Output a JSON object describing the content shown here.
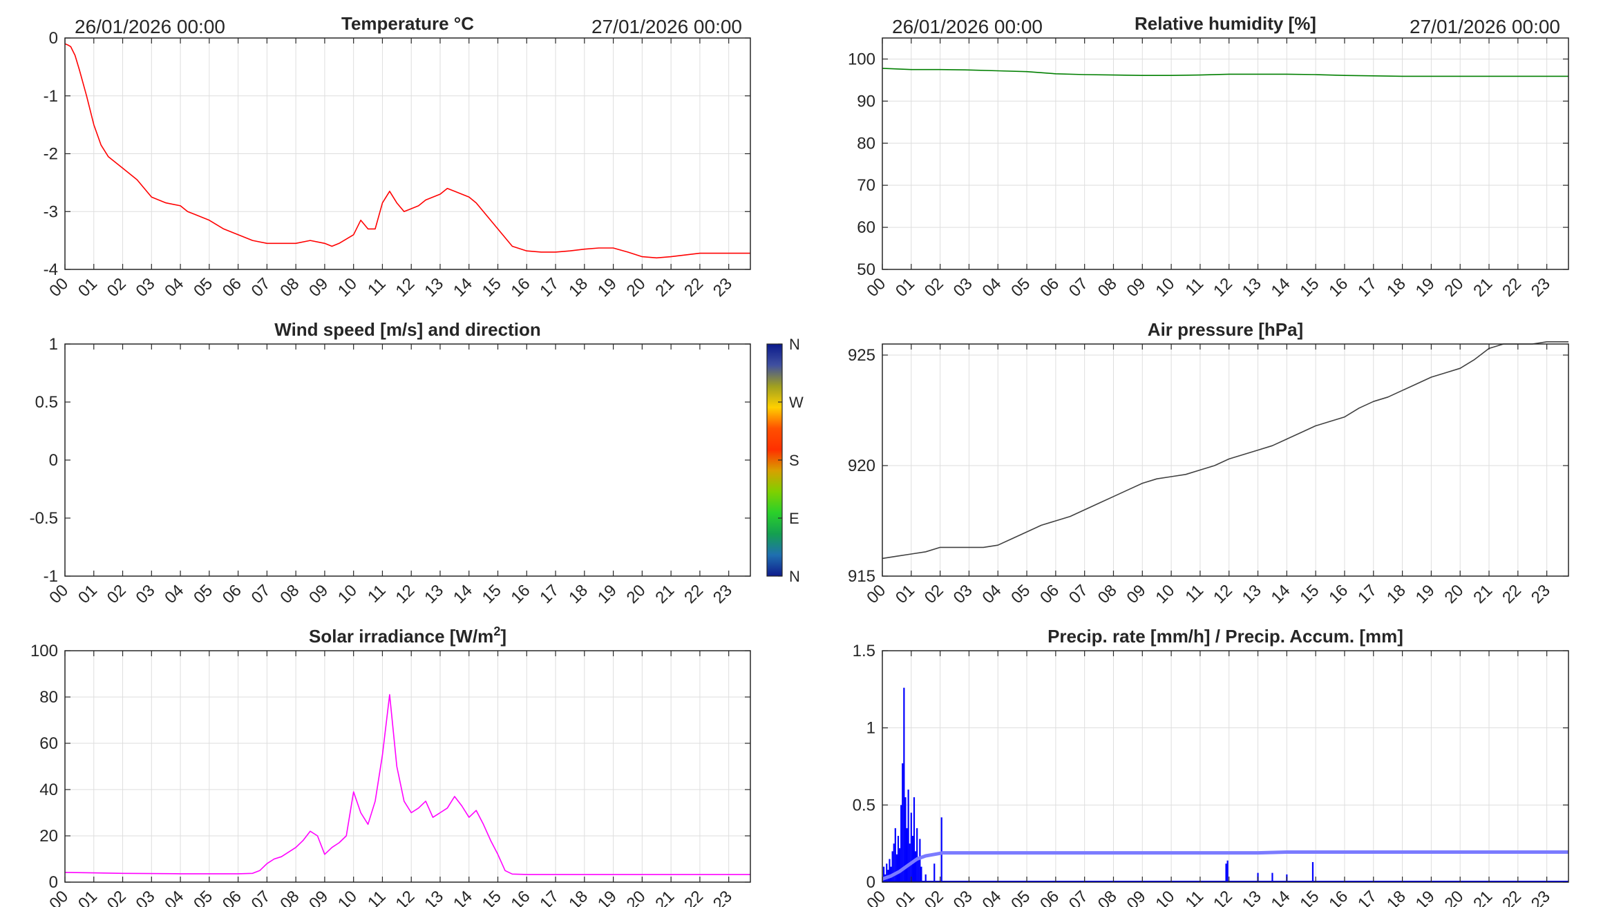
{
  "chart_data": [
    {
      "id": "temp",
      "type": "line",
      "title": "Temperature °C",
      "date_left": "26/01/2026 00:00",
      "date_right": "27/01/2026 00:00",
      "x_tick_labels": [
        "00",
        "01",
        "02",
        "03",
        "04",
        "05",
        "06",
        "07",
        "08",
        "09",
        "10",
        "11",
        "12",
        "13",
        "14",
        "15",
        "16",
        "17",
        "18",
        "19",
        "20",
        "21",
        "22",
        "23"
      ],
      "xlim": [
        0,
        23.75
      ],
      "ylim": [
        -4,
        0
      ],
      "y_ticks": [
        0,
        -1,
        -2,
        -3,
        -4
      ],
      "y_tick_labels": [
        "0",
        "-1",
        "-2",
        "-3",
        "-4"
      ],
      "grid": true,
      "color": "#ff0000",
      "series": [
        {
          "x": [
            0,
            0.1,
            0.2,
            0.35,
            0.5,
            0.75,
            1.0,
            1.25,
            1.5,
            2.0,
            2.5,
            3.0,
            3.25,
            3.5,
            4.0,
            4.25,
            4.5,
            5.0,
            5.5,
            6.0,
            6.5,
            7.0,
            7.5,
            8.0,
            8.5,
            9.0,
            9.25,
            9.5,
            10.0,
            10.25,
            10.5,
            10.75,
            11.0,
            11.25,
            11.5,
            11.75,
            12.0,
            12.25,
            12.5,
            13.0,
            13.25,
            13.5,
            14.0,
            14.25,
            14.5,
            15.0,
            15.5,
            16.0,
            16.5,
            17.0,
            17.5,
            18.0,
            18.5,
            19.0,
            19.5,
            20.0,
            20.5,
            21.0,
            21.5,
            22.0,
            22.5,
            23.0,
            23.75
          ],
          "y": [
            -0.1,
            -0.12,
            -0.15,
            -0.3,
            -0.55,
            -1.0,
            -1.5,
            -1.85,
            -2.05,
            -2.25,
            -2.45,
            -2.75,
            -2.8,
            -2.85,
            -2.9,
            -3.0,
            -3.05,
            -3.15,
            -3.3,
            -3.4,
            -3.5,
            -3.55,
            -3.55,
            -3.55,
            -3.5,
            -3.55,
            -3.6,
            -3.55,
            -3.4,
            -3.15,
            -3.3,
            -3.3,
            -2.85,
            -2.65,
            -2.85,
            -3.0,
            -2.95,
            -2.9,
            -2.8,
            -2.7,
            -2.6,
            -2.65,
            -2.75,
            -2.85,
            -3.0,
            -3.3,
            -3.6,
            -3.68,
            -3.7,
            -3.7,
            -3.68,
            -3.65,
            -3.63,
            -3.63,
            -3.7,
            -3.78,
            -3.8,
            -3.78,
            -3.75,
            -3.72,
            -3.72,
            -3.72,
            -3.72
          ]
        }
      ]
    },
    {
      "id": "humidity",
      "type": "line",
      "title": "Relative humidity [%]",
      "date_left": "26/01/2026 00:00",
      "date_right": "27/01/2026 00:00",
      "x_tick_labels": [
        "00",
        "01",
        "02",
        "03",
        "04",
        "05",
        "06",
        "07",
        "08",
        "09",
        "10",
        "11",
        "12",
        "13",
        "14",
        "15",
        "16",
        "17",
        "18",
        "19",
        "20",
        "21",
        "22",
        "23"
      ],
      "xlim": [
        0,
        23.75
      ],
      "ylim": [
        50,
        105
      ],
      "y_ticks": [
        100,
        90,
        80,
        70,
        60,
        50
      ],
      "y_tick_labels": [
        "100",
        "90",
        "80",
        "70",
        "60",
        "50"
      ],
      "grid": true,
      "color": "#007f00",
      "series": [
        {
          "x": [
            0,
            1,
            2,
            3,
            4,
            5,
            6,
            7,
            8,
            9,
            10,
            11,
            12,
            13,
            14,
            15,
            16,
            17,
            18,
            19,
            20,
            21,
            22,
            23,
            23.75
          ],
          "y": [
            97.8,
            97.5,
            97.5,
            97.4,
            97.2,
            97.0,
            96.5,
            96.3,
            96.2,
            96.1,
            96.1,
            96.2,
            96.4,
            96.4,
            96.4,
            96.3,
            96.1,
            96.0,
            95.9,
            95.9,
            95.9,
            95.9,
            95.9,
            95.9,
            95.9
          ]
        }
      ]
    },
    {
      "id": "wind",
      "type": "scatter",
      "title": "Wind speed [m/s] and direction",
      "x_tick_labels": [
        "00",
        "01",
        "02",
        "03",
        "04",
        "05",
        "06",
        "07",
        "08",
        "09",
        "10",
        "11",
        "12",
        "13",
        "14",
        "15",
        "16",
        "17",
        "18",
        "19",
        "20",
        "21",
        "22",
        "23"
      ],
      "xlim": [
        0,
        23.75
      ],
      "ylim": [
        -1,
        1
      ],
      "y_ticks": [
        1,
        0.5,
        0,
        -0.5,
        -1
      ],
      "y_tick_labels": [
        "1",
        "0.5",
        "0",
        "-0.5",
        "-1"
      ],
      "grid": false,
      "series": [],
      "colorbar": {
        "labels": [
          "N",
          "W",
          "S",
          "E",
          "N"
        ],
        "colors": [
          "#0f1c8c",
          "#1f6fb0",
          "#14a050",
          "#2ad02a",
          "#7fd000",
          "#d8a000",
          "#ff3000",
          "#ff5000",
          "#ffd000",
          "#a0a020",
          "#4050a0",
          "#0a1a8c"
        ]
      }
    },
    {
      "id": "pressure",
      "type": "line",
      "title": "Air pressure [hPa]",
      "x_tick_labels": [
        "00",
        "01",
        "02",
        "03",
        "04",
        "05",
        "06",
        "07",
        "08",
        "09",
        "10",
        "11",
        "12",
        "13",
        "14",
        "15",
        "16",
        "17",
        "18",
        "19",
        "20",
        "21",
        "22",
        "23"
      ],
      "xlim": [
        0,
        23.75
      ],
      "ylim": [
        915,
        925.5
      ],
      "y_ticks": [
        925,
        920,
        915
      ],
      "y_tick_labels": [
        "925",
        "920",
        "915"
      ],
      "grid": true,
      "color": "#404040",
      "series": [
        {
          "x": [
            0,
            0.5,
            1,
            1.5,
            2,
            2.5,
            3,
            3.5,
            4,
            4.5,
            5,
            5.5,
            6,
            6.5,
            7,
            7.5,
            8,
            8.5,
            9,
            9.5,
            10,
            10.5,
            11,
            11.5,
            12,
            12.5,
            13,
            13.5,
            14,
            14.5,
            15,
            15.5,
            16,
            16.5,
            17,
            17.5,
            18,
            18.5,
            19,
            19.5,
            20,
            20.5,
            21,
            21.5,
            22,
            22.5,
            23,
            23.75
          ],
          "y": [
            915.8,
            915.9,
            916.0,
            916.1,
            916.3,
            916.3,
            916.3,
            916.3,
            916.4,
            916.7,
            917.0,
            917.3,
            917.5,
            917.7,
            918.0,
            918.3,
            918.6,
            918.9,
            919.2,
            919.4,
            919.5,
            919.6,
            919.8,
            920.0,
            920.3,
            920.5,
            920.7,
            920.9,
            921.2,
            921.5,
            921.8,
            922.0,
            922.2,
            922.6,
            922.9,
            923.1,
            923.4,
            923.7,
            924.0,
            924.2,
            924.4,
            924.8,
            925.3,
            925.5,
            925.5,
            925.5,
            925.6,
            925.6
          ]
        }
      ]
    },
    {
      "id": "solar",
      "type": "line",
      "title": "Solar irradiance [W/m",
      "title_sup": "2",
      "title_end": "]",
      "x_tick_labels": [
        "00",
        "01",
        "02",
        "03",
        "04",
        "05",
        "06",
        "07",
        "08",
        "09",
        "10",
        "11",
        "12",
        "13",
        "14",
        "15",
        "16",
        "17",
        "18",
        "19",
        "20",
        "21",
        "22",
        "23"
      ],
      "xlim": [
        0,
        23.75
      ],
      "ylim": [
        0,
        100
      ],
      "y_ticks": [
        100,
        80,
        60,
        40,
        20,
        0
      ],
      "y_tick_labels": [
        "100",
        "80",
        "60",
        "40",
        "20",
        "0"
      ],
      "grid": true,
      "color": "#ff00ff",
      "series": [
        {
          "x": [
            0,
            1,
            2,
            3,
            4,
            5,
            6,
            6.5,
            6.75,
            7.0,
            7.25,
            7.5,
            8.0,
            8.25,
            8.5,
            8.75,
            9.0,
            9.25,
            9.5,
            9.75,
            10.0,
            10.25,
            10.5,
            10.75,
            11.0,
            11.25,
            11.5,
            11.75,
            12.0,
            12.25,
            12.5,
            12.75,
            13.0,
            13.25,
            13.5,
            13.75,
            14.0,
            14.25,
            14.5,
            14.75,
            15.0,
            15.25,
            15.5,
            16,
            17,
            18,
            19,
            20,
            21,
            22,
            23,
            23.75
          ],
          "y": [
            4.2,
            4.0,
            3.8,
            3.7,
            3.6,
            3.6,
            3.6,
            3.8,
            5,
            8,
            10,
            11,
            15,
            18,
            22,
            20,
            12,
            15,
            17,
            20,
            39,
            30,
            25,
            35,
            55,
            81,
            50,
            35,
            30,
            32,
            35,
            28,
            30,
            32,
            37,
            33,
            28,
            31,
            25,
            18,
            12,
            5,
            3.5,
            3.3,
            3.3,
            3.3,
            3.3,
            3.3,
            3.3,
            3.3,
            3.3,
            3.3
          ]
        }
      ]
    },
    {
      "id": "precip",
      "type": "bar",
      "title": "Precip. rate [mm/h] / Precip. Accum. [mm]",
      "x_tick_labels": [
        "00",
        "01",
        "02",
        "03",
        "04",
        "05",
        "06",
        "07",
        "08",
        "09",
        "10",
        "11",
        "12",
        "13",
        "14",
        "15",
        "16",
        "17",
        "18",
        "19",
        "20",
        "21",
        "22",
        "23"
      ],
      "xlim": [
        0,
        23.75
      ],
      "ylim": [
        0,
        1.5
      ],
      "y_ticks": [
        1.5,
        1,
        0.5,
        0
      ],
      "y_tick_labels": [
        "1.5",
        "1",
        "0.5",
        "0"
      ],
      "grid": true,
      "rate_color": "#0000ff",
      "accum_color": "#7b7bff",
      "series": [
        {
          "name": "",
          "kind": "rate",
          "x": [
            0.05,
            0.1,
            0.15,
            0.2,
            0.25,
            0.3,
            0.35,
            0.4,
            0.45,
            0.5,
            0.55,
            0.6,
            0.65,
            0.7,
            0.75,
            0.8,
            0.85,
            0.9,
            0.95,
            1.0,
            1.05,
            1.1,
            1.15,
            1.2,
            1.25,
            1.3,
            1.35,
            1.5,
            1.8,
            2.05,
            11.9,
            11.95,
            13.0,
            13.5,
            14.0,
            14.9
          ],
          "y": [
            0.1,
            0.05,
            0.12,
            0.08,
            0.15,
            0.1,
            0.2,
            0.25,
            0.35,
            0.18,
            0.3,
            0.22,
            0.5,
            0.77,
            1.26,
            0.55,
            0.35,
            0.6,
            0.25,
            0.45,
            0.3,
            0.55,
            0.2,
            0.35,
            0.15,
            0.28,
            0.1,
            0.05,
            0.12,
            0.42,
            0.12,
            0.14,
            0.06,
            0.06,
            0.05,
            0.13
          ]
        },
        {
          "name": "",
          "kind": "accum",
          "x": [
            0,
            0.3,
            0.6,
            0.9,
            1.2,
            1.5,
            1.8,
            2.1,
            3,
            5,
            8,
            11,
            11.9,
            12,
            13,
            14,
            15,
            17,
            19,
            21,
            23,
            23.75
          ],
          "y": [
            0.02,
            0.04,
            0.07,
            0.11,
            0.15,
            0.17,
            0.18,
            0.19,
            0.19,
            0.19,
            0.19,
            0.19,
            0.19,
            0.19,
            0.19,
            0.195,
            0.195,
            0.195,
            0.195,
            0.195,
            0.195,
            0.195
          ]
        }
      ]
    }
  ]
}
